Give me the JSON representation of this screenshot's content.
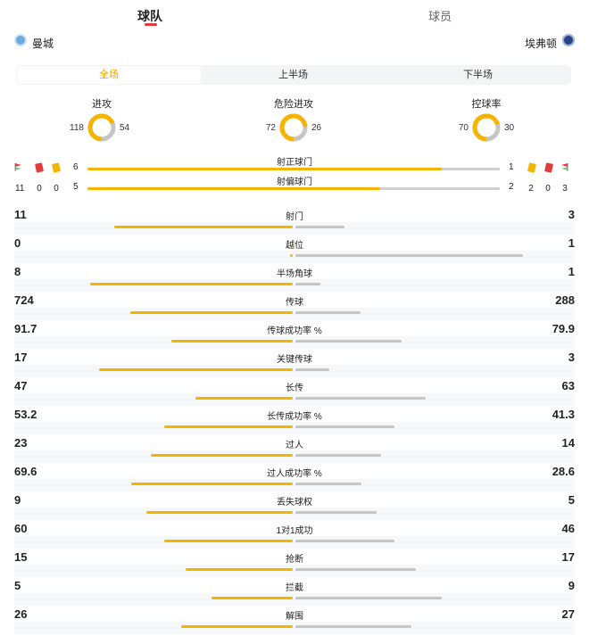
{
  "tabs": [
    {
      "label": "球队",
      "active": true
    },
    {
      "label": "球员",
      "active": false
    }
  ],
  "teams": {
    "home": {
      "name": "曼城",
      "crest_icon": "man-city-crest-icon",
      "color": "#6cabdd"
    },
    "away": {
      "name": "埃弗顿",
      "crest_icon": "everton-crest-icon",
      "color": "#274488"
    }
  },
  "periods": [
    {
      "label": "全场",
      "active": true
    },
    {
      "label": "上半场",
      "active": false
    },
    {
      "label": "下半场",
      "active": false
    }
  ],
  "donuts": [
    {
      "title": "进攻",
      "home": "118",
      "away": "54",
      "home_value": 118,
      "away_value": 54
    },
    {
      "title": "危险进攻",
      "home": "72",
      "away": "26",
      "home_value": 72,
      "away_value": 26
    },
    {
      "title": "控球率",
      "home": "70",
      "away": "30",
      "home_value": 70,
      "away_value": 30
    }
  ],
  "shots": [
    {
      "label": "射正球门",
      "home": "6",
      "away": "1",
      "home_share": 0.86
    },
    {
      "label": "射偏球门",
      "home": "5",
      "away": "2",
      "home_share": 0.71
    }
  ],
  "cards": {
    "home_counts": [
      "11",
      "0",
      "0"
    ],
    "away_counts": [
      "2",
      "0",
      "3"
    ],
    "icons": [
      "corner-flag-icon",
      "red-card-icon",
      "yellow-card-icon"
    ]
  },
  "colors": {
    "home_bar": "#f4b400",
    "away_bar": "#c5c5c5",
    "accent": "#e23b3b",
    "period_active": "#e8a400"
  },
  "stats": [
    {
      "label": "射门",
      "home": "11",
      "away": "3",
      "hv": 11,
      "av": 3
    },
    {
      "label": "越位",
      "home": "0",
      "away": "1",
      "hv": 0,
      "av": 1
    },
    {
      "label": "半场角球",
      "home": "8",
      "away": "1",
      "hv": 8,
      "av": 1
    },
    {
      "label": "传球",
      "home": "724",
      "away": "288",
      "hv": 724,
      "av": 288
    },
    {
      "label": "传球成功率 %",
      "home": "91.7",
      "away": "79.9",
      "hv": 91.7,
      "av": 79.9
    },
    {
      "label": "关键传球",
      "home": "17",
      "away": "3",
      "hv": 17,
      "av": 3
    },
    {
      "label": "长传",
      "home": "47",
      "away": "63",
      "hv": 47,
      "av": 63
    },
    {
      "label": "长传成功率 %",
      "home": "53.2",
      "away": "41.3",
      "hv": 53.2,
      "av": 41.3
    },
    {
      "label": "过人",
      "home": "23",
      "away": "14",
      "hv": 23,
      "av": 14
    },
    {
      "label": "过人成功率 %",
      "home": "69.6",
      "away": "28.6",
      "hv": 69.6,
      "av": 28.6
    },
    {
      "label": "丢失球权",
      "home": "9",
      "away": "5",
      "hv": 9,
      "av": 5
    },
    {
      "label": "1对1成功",
      "home": "60",
      "away": "46",
      "hv": 60,
      "av": 46
    },
    {
      "label": "抢断",
      "home": "15",
      "away": "17",
      "hv": 15,
      "av": 17
    },
    {
      "label": "拦截",
      "home": "5",
      "away": "9",
      "hv": 5,
      "av": 9
    },
    {
      "label": "解围",
      "home": "26",
      "away": "27",
      "hv": 26,
      "av": 27
    }
  ]
}
